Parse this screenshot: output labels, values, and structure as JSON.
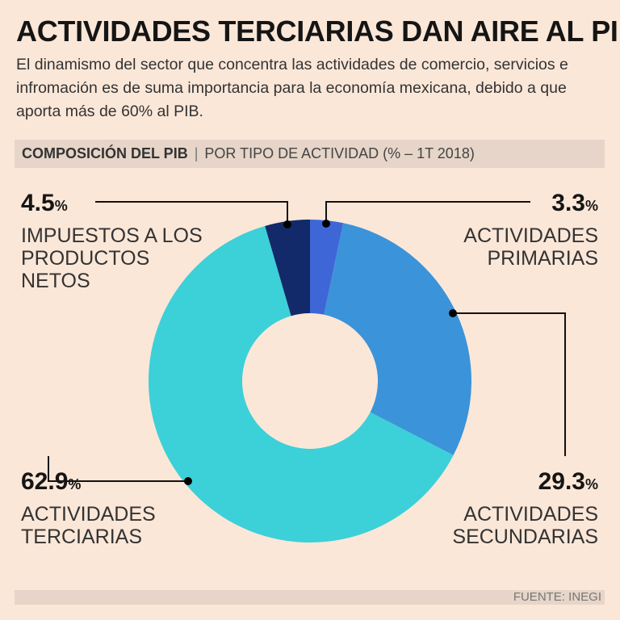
{
  "title": "ACTIVIDADES TERCIARIAS DAN AIRE AL PIB",
  "subtitle": "El dinamismo del sector que concentra las actividades de comercio, servicios e infromación es de suma importancia para la economía mexicana, debido a que aporta más de 60% al PIB.",
  "section": {
    "label": "COMPOSICIÓN DEL PIB",
    "separator": "|",
    "detail": "POR TIPO DE ACTIVIDAD (% – 1T 2018)"
  },
  "source": "FUENTE: INEGI",
  "chart_data": {
    "type": "pie",
    "donut": true,
    "title": "COMPOSICIÓN DEL PIB | POR TIPO DE ACTIVIDAD (% – 1T 2018)",
    "unit": "%",
    "slices": [
      {
        "name": "ACTIVIDADES PRIMARIAS",
        "value": 3.3,
        "display": "3.3",
        "label_lines": [
          "ACTIVIDADES",
          "PRIMARIAS"
        ],
        "color": "#3f66d6"
      },
      {
        "name": "ACTIVIDADES SECUNDARIAS",
        "value": 29.3,
        "display": "29.3",
        "label_lines": [
          "ACTIVIDADES",
          "SECUNDARIAS"
        ],
        "color": "#3b93d9"
      },
      {
        "name": "ACTIVIDADES TERCIARIAS",
        "value": 62.9,
        "display": "62.9",
        "label_lines": [
          "ACTIVIDADES",
          "TERCIARIAS"
        ],
        "color": "#3cd0d8"
      },
      {
        "name": "IMPUESTOS A LOS PRODUCTOS NETOS",
        "value": 4.5,
        "display": "4.5",
        "label_lines": [
          "IMPUESTOS A LOS",
          "PRODUCTOS",
          "NETOS"
        ],
        "color": "#122a6a"
      }
    ]
  }
}
